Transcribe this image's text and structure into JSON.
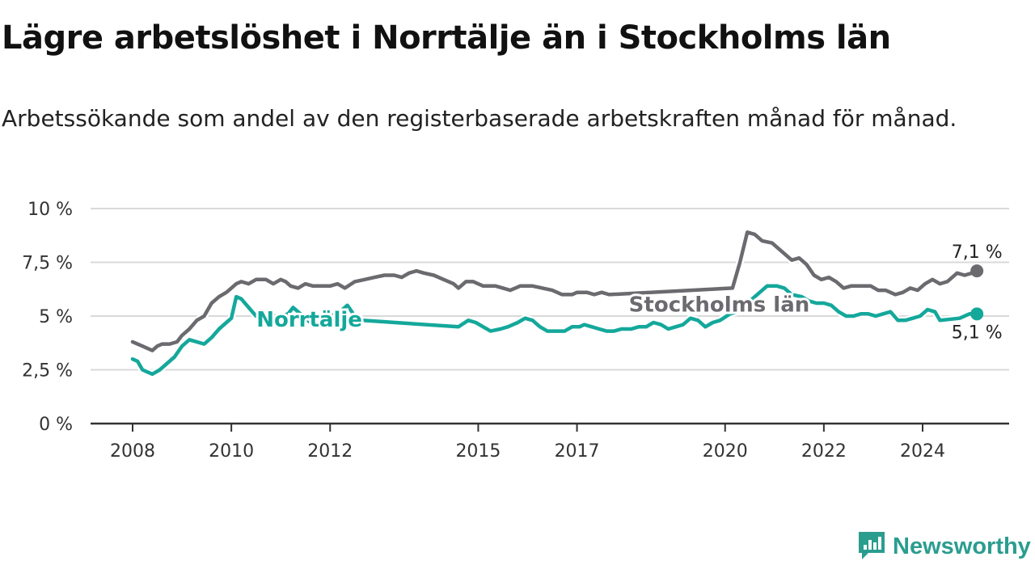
{
  "title": "Lägre arbetslöshet i Norrtälje än i Stockholms län",
  "subtitle": "Arbetssökande som andel av den registerbaserade arbetskraften månad för månad.",
  "brand": "Newsworthy",
  "colors": {
    "norrtalje": "#14a89b",
    "stockholm": "#6b6a6f",
    "grid": "#d9d9d9",
    "axis": "#333333",
    "text": "#333333",
    "brand": "#2a9d8f"
  },
  "chart_data": {
    "type": "line",
    "title": "Lägre arbetslöshet i Norrtälje än i Stockholms län",
    "subtitle": "Arbetssökande som andel av den registerbaserade arbetskraften månad för månad.",
    "xlabel": "",
    "ylabel": "",
    "xlim": [
      2008.0,
      2025.2
    ],
    "ylim": [
      0,
      10
    ],
    "grid": true,
    "y_ticks": [
      {
        "value": 0,
        "label": "0 %"
      },
      {
        "value": 2.5,
        "label": "2,5 %"
      },
      {
        "value": 5,
        "label": "5 %"
      },
      {
        "value": 7.5,
        "label": "7,5 %"
      },
      {
        "value": 10,
        "label": "10 %"
      }
    ],
    "x_ticks": [
      {
        "value": 2008,
        "label": "2008"
      },
      {
        "value": 2010,
        "label": "2010"
      },
      {
        "value": 2012,
        "label": "2012"
      },
      {
        "value": 2015,
        "label": "2015"
      },
      {
        "value": 2017,
        "label": "2017"
      },
      {
        "value": 2020,
        "label": "2020"
      },
      {
        "value": 2022,
        "label": "2022"
      },
      {
        "value": 2024,
        "label": "2024"
      }
    ],
    "series": [
      {
        "name": "Stockholms län",
        "last_label": "7,1 %",
        "points": [
          [
            2008.0,
            3.8
          ],
          [
            2008.1,
            3.7
          ],
          [
            2008.2,
            3.6
          ],
          [
            2008.3,
            3.5
          ],
          [
            2008.4,
            3.4
          ],
          [
            2008.5,
            3.6
          ],
          [
            2008.6,
            3.7
          ],
          [
            2008.75,
            3.7
          ],
          [
            2008.9,
            3.8
          ],
          [
            2009.0,
            4.1
          ],
          [
            2009.15,
            4.4
          ],
          [
            2009.3,
            4.8
          ],
          [
            2009.45,
            5.0
          ],
          [
            2009.6,
            5.6
          ],
          [
            2009.75,
            5.9
          ],
          [
            2009.9,
            6.1
          ],
          [
            2010.0,
            6.3
          ],
          [
            2010.1,
            6.5
          ],
          [
            2010.2,
            6.6
          ],
          [
            2010.35,
            6.5
          ],
          [
            2010.5,
            6.7
          ],
          [
            2010.7,
            6.7
          ],
          [
            2010.85,
            6.5
          ],
          [
            2011.0,
            6.7
          ],
          [
            2011.1,
            6.6
          ],
          [
            2011.2,
            6.4
          ],
          [
            2011.35,
            6.3
          ],
          [
            2011.5,
            6.5
          ],
          [
            2011.65,
            6.4
          ],
          [
            2011.8,
            6.4
          ],
          [
            2012.0,
            6.4
          ],
          [
            2012.15,
            6.5
          ],
          [
            2012.3,
            6.3
          ],
          [
            2012.5,
            6.6
          ],
          [
            2012.7,
            6.7
          ],
          [
            2012.9,
            6.8
          ],
          [
            2013.1,
            6.9
          ],
          [
            2013.3,
            6.9
          ],
          [
            2013.45,
            6.8
          ],
          [
            2013.6,
            7.0
          ],
          [
            2013.75,
            7.1
          ],
          [
            2013.9,
            7.0
          ],
          [
            2014.1,
            6.9
          ],
          [
            2014.3,
            6.7
          ],
          [
            2014.5,
            6.5
          ],
          [
            2014.6,
            6.3
          ],
          [
            2014.75,
            6.6
          ],
          [
            2014.9,
            6.6
          ],
          [
            2015.1,
            6.4
          ],
          [
            2015.35,
            6.4
          ],
          [
            2015.5,
            6.3
          ],
          [
            2015.65,
            6.2
          ],
          [
            2015.85,
            6.4
          ],
          [
            2016.1,
            6.4
          ],
          [
            2016.3,
            6.3
          ],
          [
            2016.5,
            6.2
          ],
          [
            2016.7,
            6.0
          ],
          [
            2016.9,
            6.0
          ],
          [
            2017.0,
            6.1
          ],
          [
            2017.2,
            6.1
          ],
          [
            2017.35,
            6.0
          ],
          [
            2017.5,
            6.1
          ],
          [
            2017.65,
            6.0
          ],
          [
            2020.15,
            6.3
          ],
          [
            2020.3,
            7.5
          ],
          [
            2020.45,
            8.9
          ],
          [
            2020.6,
            8.8
          ],
          [
            2020.75,
            8.5
          ],
          [
            2020.95,
            8.4
          ],
          [
            2021.15,
            8.0
          ],
          [
            2021.35,
            7.6
          ],
          [
            2021.5,
            7.7
          ],
          [
            2021.65,
            7.4
          ],
          [
            2021.8,
            6.9
          ],
          [
            2021.95,
            6.7
          ],
          [
            2022.1,
            6.8
          ],
          [
            2022.25,
            6.6
          ],
          [
            2022.4,
            6.3
          ],
          [
            2022.55,
            6.4
          ],
          [
            2022.75,
            6.4
          ],
          [
            2022.95,
            6.4
          ],
          [
            2023.1,
            6.2
          ],
          [
            2023.25,
            6.2
          ],
          [
            2023.45,
            6.0
          ],
          [
            2023.6,
            6.1
          ],
          [
            2023.75,
            6.3
          ],
          [
            2023.9,
            6.2
          ],
          [
            2024.05,
            6.5
          ],
          [
            2024.2,
            6.7
          ],
          [
            2024.35,
            6.5
          ],
          [
            2024.5,
            6.6
          ],
          [
            2024.7,
            7.0
          ],
          [
            2024.85,
            6.9
          ],
          [
            2025.0,
            7.0
          ],
          [
            2025.1,
            7.1
          ]
        ]
      },
      {
        "name": "Norrtälje",
        "last_label": "5,1 %",
        "points": [
          [
            2008.0,
            3.0
          ],
          [
            2008.1,
            2.9
          ],
          [
            2008.2,
            2.5
          ],
          [
            2008.3,
            2.4
          ],
          [
            2008.4,
            2.3
          ],
          [
            2008.55,
            2.5
          ],
          [
            2008.7,
            2.8
          ],
          [
            2008.85,
            3.1
          ],
          [
            2009.0,
            3.6
          ],
          [
            2009.15,
            3.9
          ],
          [
            2009.3,
            3.8
          ],
          [
            2009.45,
            3.7
          ],
          [
            2009.6,
            4.0
          ],
          [
            2009.75,
            4.4
          ],
          [
            2009.9,
            4.7
          ],
          [
            2010.0,
            4.9
          ],
          [
            2010.1,
            5.9
          ],
          [
            2010.2,
            5.8
          ],
          [
            2010.35,
            5.4
          ],
          [
            2010.5,
            5.0
          ],
          [
            2010.7,
            4.8
          ],
          [
            2010.85,
            5.0
          ],
          [
            2011.0,
            5.0
          ],
          [
            2011.15,
            5.1
          ],
          [
            2011.25,
            5.4
          ],
          [
            2011.4,
            5.1
          ],
          [
            2011.5,
            4.9
          ],
          [
            2011.65,
            4.6
          ],
          [
            2011.8,
            4.7
          ],
          [
            2011.95,
            4.9
          ],
          [
            2012.1,
            5.1
          ],
          [
            2012.25,
            5.3
          ],
          [
            2012.35,
            5.5
          ],
          [
            2012.5,
            5.0
          ],
          [
            2012.65,
            4.8
          ],
          [
            2014.6,
            4.5
          ],
          [
            2014.8,
            4.8
          ],
          [
            2014.95,
            4.7
          ],
          [
            2015.1,
            4.5
          ],
          [
            2015.25,
            4.3
          ],
          [
            2015.45,
            4.4
          ],
          [
            2015.6,
            4.5
          ],
          [
            2015.8,
            4.7
          ],
          [
            2015.95,
            4.9
          ],
          [
            2016.1,
            4.8
          ],
          [
            2016.25,
            4.5
          ],
          [
            2016.4,
            4.3
          ],
          [
            2016.6,
            4.3
          ],
          [
            2016.75,
            4.3
          ],
          [
            2016.9,
            4.5
          ],
          [
            2017.05,
            4.5
          ],
          [
            2017.15,
            4.6
          ],
          [
            2017.3,
            4.5
          ],
          [
            2017.45,
            4.4
          ],
          [
            2017.6,
            4.3
          ],
          [
            2017.75,
            4.3
          ],
          [
            2017.9,
            4.4
          ],
          [
            2018.1,
            4.4
          ],
          [
            2018.25,
            4.5
          ],
          [
            2018.4,
            4.5
          ],
          [
            2018.55,
            4.7
          ],
          [
            2018.7,
            4.6
          ],
          [
            2018.85,
            4.4
          ],
          [
            2019.0,
            4.5
          ],
          [
            2019.15,
            4.6
          ],
          [
            2019.3,
            4.9
          ],
          [
            2019.45,
            4.8
          ],
          [
            2019.6,
            4.5
          ],
          [
            2019.75,
            4.7
          ],
          [
            2019.9,
            4.8
          ],
          [
            2020.1,
            5.1
          ],
          [
            2020.25,
            5.2
          ],
          [
            2020.85,
            6.4
          ],
          [
            2021.05,
            6.4
          ],
          [
            2021.2,
            6.3
          ],
          [
            2021.35,
            6.0
          ],
          [
            2021.55,
            5.9
          ],
          [
            2021.7,
            5.7
          ],
          [
            2021.85,
            5.6
          ],
          [
            2022.0,
            5.6
          ],
          [
            2022.15,
            5.5
          ],
          [
            2022.3,
            5.2
          ],
          [
            2022.45,
            5.0
          ],
          [
            2022.6,
            5.0
          ],
          [
            2022.75,
            5.1
          ],
          [
            2022.9,
            5.1
          ],
          [
            2023.05,
            5.0
          ],
          [
            2023.2,
            5.1
          ],
          [
            2023.35,
            5.2
          ],
          [
            2023.5,
            4.8
          ],
          [
            2023.65,
            4.8
          ],
          [
            2023.8,
            4.9
          ],
          [
            2023.95,
            5.0
          ],
          [
            2024.1,
            5.3
          ],
          [
            2024.25,
            5.2
          ],
          [
            2024.35,
            4.8
          ],
          [
            2024.75,
            4.9
          ],
          [
            2024.95,
            5.1
          ],
          [
            2025.1,
            5.1
          ]
        ]
      }
    ],
    "annotations": [
      {
        "text": "Stockholms län",
        "series": "Stockholms län",
        "at_x": 2018.05
      },
      {
        "text": "Norrtälje",
        "series": "Norrtälje",
        "at_x": 2012.65
      }
    ]
  }
}
